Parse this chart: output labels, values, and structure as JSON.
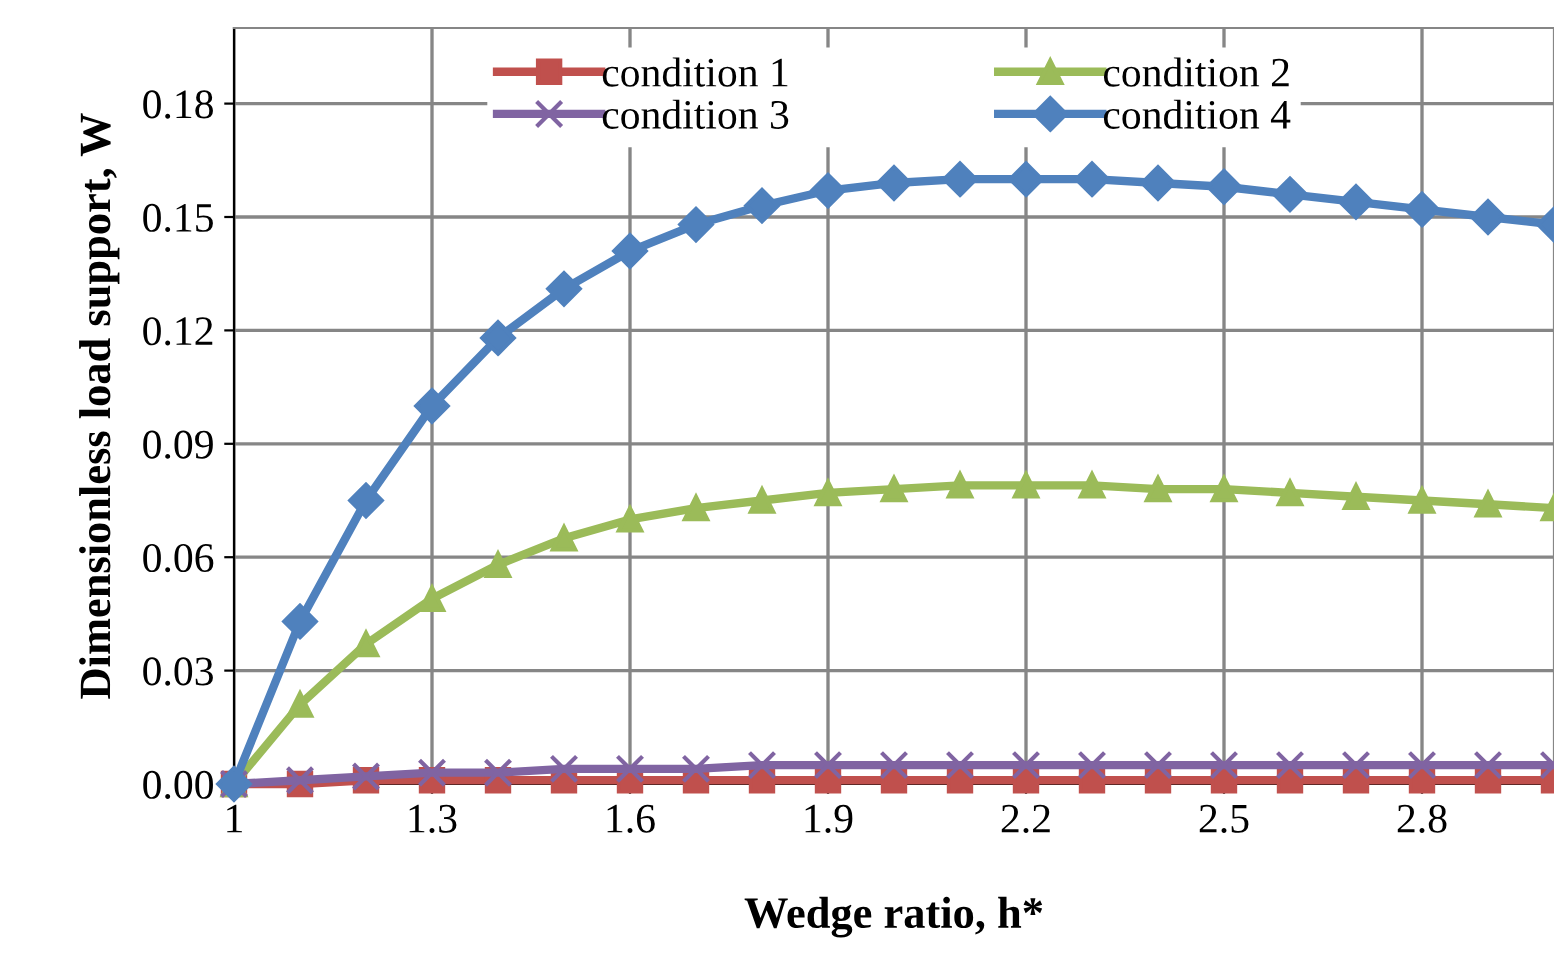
{
  "chart_data": {
    "type": "line",
    "xlabel": "Wedge ratio, h*",
    "ylabel": "Dimensionless load support, W",
    "x": [
      1,
      1.1,
      1.2,
      1.3,
      1.4,
      1.5,
      1.6,
      1.7,
      1.8,
      1.9,
      2,
      2.1,
      2.2,
      2.3,
      2.4,
      2.5,
      2.6,
      2.7,
      2.8,
      2.9,
      3
    ],
    "series": [
      {
        "name": "condition 1",
        "color": "#c0504d",
        "marker": "square",
        "values": [
          0,
          0.0,
          0.001,
          0.001,
          0.001,
          0.001,
          0.001,
          0.001,
          0.001,
          0.001,
          0.001,
          0.001,
          0.001,
          0.001,
          0.001,
          0.001,
          0.001,
          0.001,
          0.001,
          0.001,
          0.001
        ]
      },
      {
        "name": "condition 2",
        "color": "#9bbb59",
        "marker": "triangle",
        "values": [
          0,
          0.021,
          0.037,
          0.049,
          0.058,
          0.065,
          0.07,
          0.073,
          0.075,
          0.077,
          0.078,
          0.079,
          0.079,
          0.079,
          0.078,
          0.078,
          0.077,
          0.076,
          0.075,
          0.074,
          0.073
        ]
      },
      {
        "name": "condition 3",
        "color": "#8064a2",
        "marker": "cross",
        "values": [
          0,
          0.001,
          0.002,
          0.003,
          0.003,
          0.004,
          0.004,
          0.004,
          0.005,
          0.005,
          0.005,
          0.005,
          0.005,
          0.005,
          0.005,
          0.005,
          0.005,
          0.005,
          0.005,
          0.005,
          0.005
        ]
      },
      {
        "name": "condition 4",
        "color": "#4f81bd",
        "marker": "diamond",
        "values": [
          0,
          0.043,
          0.075,
          0.1,
          0.118,
          0.131,
          0.141,
          0.148,
          0.153,
          0.157,
          0.159,
          0.16,
          0.16,
          0.16,
          0.159,
          0.158,
          0.156,
          0.154,
          0.152,
          0.15,
          0.148
        ]
      }
    ],
    "xlim": [
      1,
      3
    ],
    "xticks": [
      1,
      1.3,
      1.6,
      1.9,
      2.2,
      2.5,
      2.8
    ],
    "ylim": [
      0,
      0.2
    ],
    "yticks": [
      {
        "value": 0,
        "label": "0.00"
      },
      0.03,
      0.06,
      0.09,
      0.12,
      0.15,
      0.18
    ],
    "grid": true,
    "legend": "top",
    "line_style": "solid"
  }
}
